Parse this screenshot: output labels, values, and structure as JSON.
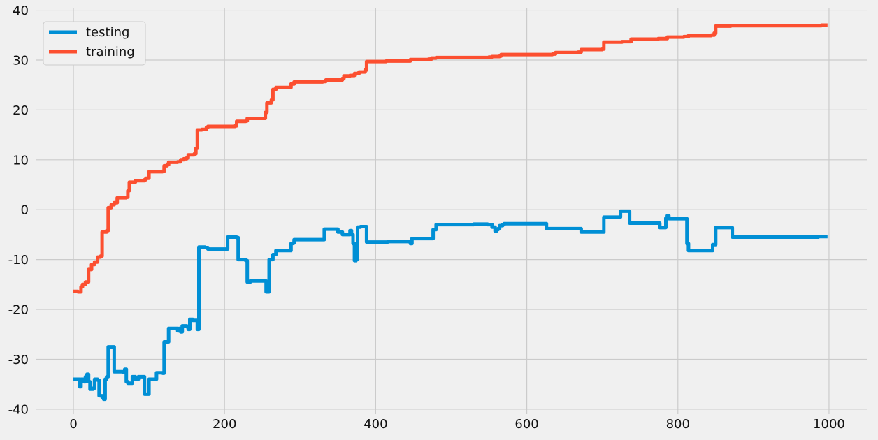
{
  "chart_data": {
    "type": "line",
    "title": "",
    "xlabel": "",
    "ylabel": "",
    "xlim": [
      -50,
      1050
    ],
    "ylim": [
      -41,
      40.5
    ],
    "xticks": [
      0,
      200,
      400,
      600,
      800,
      1000
    ],
    "yticks": [
      -40,
      -30,
      -20,
      -10,
      0,
      10,
      20,
      30,
      40
    ],
    "grid": true,
    "legend_position": "top-left",
    "background": "#f0f0f0",
    "grid_color": "#cbcbcb",
    "series": [
      {
        "name": "testing",
        "color": "#008fd5",
        "step": true,
        "points": [
          [
            0,
            -34
          ],
          [
            8,
            -35.5
          ],
          [
            10,
            -34
          ],
          [
            14,
            -34.5
          ],
          [
            16,
            -33.5
          ],
          [
            18,
            -33
          ],
          [
            20,
            -34.5
          ],
          [
            22,
            -36
          ],
          [
            26,
            -35.8
          ],
          [
            28,
            -34
          ],
          [
            32,
            -34.2
          ],
          [
            34,
            -37.3
          ],
          [
            38,
            -37.6
          ],
          [
            40,
            -38
          ],
          [
            42,
            -34
          ],
          [
            44,
            -33.5
          ],
          [
            46,
            -27.5
          ],
          [
            52,
            -27.5
          ],
          [
            54,
            -32.5
          ],
          [
            66,
            -32.6
          ],
          [
            68,
            -32
          ],
          [
            70,
            -34.5
          ],
          [
            72,
            -34.8
          ],
          [
            76,
            -34.8
          ],
          [
            78,
            -33.5
          ],
          [
            82,
            -34
          ],
          [
            86,
            -33.5
          ],
          [
            94,
            -37
          ],
          [
            100,
            -34
          ],
          [
            108,
            -34
          ],
          [
            110,
            -32.7
          ],
          [
            118,
            -32.8
          ],
          [
            120,
            -26.5
          ],
          [
            125,
            -26.5
          ],
          [
            126,
            -23.8
          ],
          [
            136,
            -23.8
          ],
          [
            138,
            -24.3
          ],
          [
            140,
            -23.8
          ],
          [
            142,
            -24.5
          ],
          [
            144,
            -23.3
          ],
          [
            150,
            -23.5
          ],
          [
            152,
            -24
          ],
          [
            154,
            -22
          ],
          [
            158,
            -22.2
          ],
          [
            162,
            -22.2
          ],
          [
            164,
            -24
          ],
          [
            166,
            -7.5
          ],
          [
            174,
            -7.6
          ],
          [
            178,
            -7.9
          ],
          [
            200,
            -7.9
          ],
          [
            204,
            -5.5
          ],
          [
            216,
            -5.6
          ],
          [
            218,
            -10
          ],
          [
            228,
            -10.2
          ],
          [
            230,
            -14.5
          ],
          [
            232,
            -14.5
          ],
          [
            234,
            -14.3
          ],
          [
            254,
            -14.3
          ],
          [
            255,
            -16.5
          ],
          [
            258,
            -16.5
          ],
          [
            259,
            -10
          ],
          [
            262,
            -10
          ],
          [
            264,
            -9
          ],
          [
            268,
            -8.2
          ],
          [
            286,
            -8.2
          ],
          [
            288,
            -6.8
          ],
          [
            290,
            -6.7
          ],
          [
            292,
            -6
          ],
          [
            330,
            -6
          ],
          [
            332,
            -3.9
          ],
          [
            348,
            -3.9
          ],
          [
            350,
            -4.5
          ],
          [
            354,
            -4.5
          ],
          [
            356,
            -5
          ],
          [
            364,
            -5
          ],
          [
            366,
            -4.2
          ],
          [
            368,
            -5
          ],
          [
            370,
            -6.8
          ],
          [
            372,
            -10.2
          ],
          [
            374,
            -10
          ],
          [
            376,
            -3.5
          ],
          [
            380,
            -3.4
          ],
          [
            386,
            -3.4
          ],
          [
            388,
            -6.5
          ],
          [
            414,
            -6.5
          ],
          [
            416,
            -6.4
          ],
          [
            444,
            -6.4
          ],
          [
            446,
            -6.8
          ],
          [
            448,
            -5.8
          ],
          [
            474,
            -5.8
          ],
          [
            476,
            -4
          ],
          [
            480,
            -3
          ],
          [
            528,
            -3
          ],
          [
            530,
            -2.9
          ],
          [
            544,
            -2.9
          ],
          [
            548,
            -3
          ],
          [
            552,
            -3
          ],
          [
            554,
            -3.5
          ],
          [
            558,
            -4.3
          ],
          [
            560,
            -4
          ],
          [
            562,
            -3.8
          ],
          [
            564,
            -3.2
          ],
          [
            568,
            -3
          ],
          [
            570,
            -2.8
          ],
          [
            624,
            -2.8
          ],
          [
            626,
            -3.8
          ],
          [
            670,
            -3.8
          ],
          [
            672,
            -4.5
          ],
          [
            700,
            -4.5
          ],
          [
            702,
            -1.5
          ],
          [
            722,
            -1.5
          ],
          [
            724,
            -0.3
          ],
          [
            734,
            -0.3
          ],
          [
            736,
            -2.7
          ],
          [
            774,
            -2.7
          ],
          [
            776,
            -3.6
          ],
          [
            782,
            -3.6
          ],
          [
            784,
            -1.7
          ],
          [
            786,
            -1.2
          ],
          [
            788,
            -1.8
          ],
          [
            810,
            -1.8
          ],
          [
            812,
            -6.8
          ],
          [
            814,
            -8.2
          ],
          [
            844,
            -8.2
          ],
          [
            846,
            -7
          ],
          [
            848,
            -7
          ],
          [
            850,
            -3.6
          ],
          [
            870,
            -3.6
          ],
          [
            872,
            -5.5
          ],
          [
            984,
            -5.5
          ],
          [
            986,
            -5.4
          ],
          [
            998,
            -5.4
          ]
        ]
      },
      {
        "name": "training",
        "color": "#fc4f30",
        "step": true,
        "points": [
          [
            0,
            -16.4
          ],
          [
            6,
            -16.5
          ],
          [
            10,
            -15.5
          ],
          [
            12,
            -15
          ],
          [
            16,
            -14.5
          ],
          [
            20,
            -12
          ],
          [
            24,
            -11
          ],
          [
            28,
            -10.5
          ],
          [
            32,
            -9.5
          ],
          [
            36,
            -9.3
          ],
          [
            38,
            -4.5
          ],
          [
            44,
            -4.2
          ],
          [
            46,
            0.4
          ],
          [
            50,
            1
          ],
          [
            54,
            1.4
          ],
          [
            58,
            2.4
          ],
          [
            70,
            2.5
          ],
          [
            72,
            3.8
          ],
          [
            74,
            5.5
          ],
          [
            82,
            5.8
          ],
          [
            94,
            6
          ],
          [
            96,
            6.3
          ],
          [
            100,
            7.6
          ],
          [
            118,
            7.7
          ],
          [
            120,
            8.8
          ],
          [
            124,
            9
          ],
          [
            126,
            9.5
          ],
          [
            138,
            9.6
          ],
          [
            142,
            10
          ],
          [
            146,
            10.2
          ],
          [
            150,
            10.4
          ],
          [
            152,
            11
          ],
          [
            160,
            11.2
          ],
          [
            162,
            12.3
          ],
          [
            164,
            16
          ],
          [
            170,
            16.1
          ],
          [
            176,
            16.5
          ],
          [
            178,
            16.7
          ],
          [
            214,
            16.8
          ],
          [
            216,
            17.7
          ],
          [
            228,
            17.8
          ],
          [
            230,
            18.3
          ],
          [
            250,
            18.3
          ],
          [
            254,
            19.5
          ],
          [
            256,
            21.4
          ],
          [
            262,
            22
          ],
          [
            264,
            24.1
          ],
          [
            268,
            24.5
          ],
          [
            284,
            24.5
          ],
          [
            288,
            25.2
          ],
          [
            292,
            25.6
          ],
          [
            330,
            25.7
          ],
          [
            334,
            26
          ],
          [
            356,
            26.3
          ],
          [
            358,
            26.8
          ],
          [
            366,
            26.9
          ],
          [
            372,
            27.3
          ],
          [
            378,
            27.6
          ],
          [
            386,
            28
          ],
          [
            388,
            29.7
          ],
          [
            414,
            29.8
          ],
          [
            444,
            29.8
          ],
          [
            446,
            30.1
          ],
          [
            470,
            30.2
          ],
          [
            474,
            30.4
          ],
          [
            480,
            30.5
          ],
          [
            524,
            30.5
          ],
          [
            550,
            30.6
          ],
          [
            554,
            30.7
          ],
          [
            564,
            30.8
          ],
          [
            566,
            31.1
          ],
          [
            634,
            31.2
          ],
          [
            638,
            31.5
          ],
          [
            668,
            31.6
          ],
          [
            672,
            32.1
          ],
          [
            700,
            32.2
          ],
          [
            702,
            33.6
          ],
          [
            726,
            33.7
          ],
          [
            738,
            34.2
          ],
          [
            774,
            34.3
          ],
          [
            786,
            34.6
          ],
          [
            808,
            34.7
          ],
          [
            814,
            34.9
          ],
          [
            844,
            35
          ],
          [
            848,
            35.4
          ],
          [
            850,
            36.8
          ],
          [
            870,
            36.9
          ],
          [
            990,
            37
          ],
          [
            998,
            37
          ]
        ]
      }
    ]
  }
}
